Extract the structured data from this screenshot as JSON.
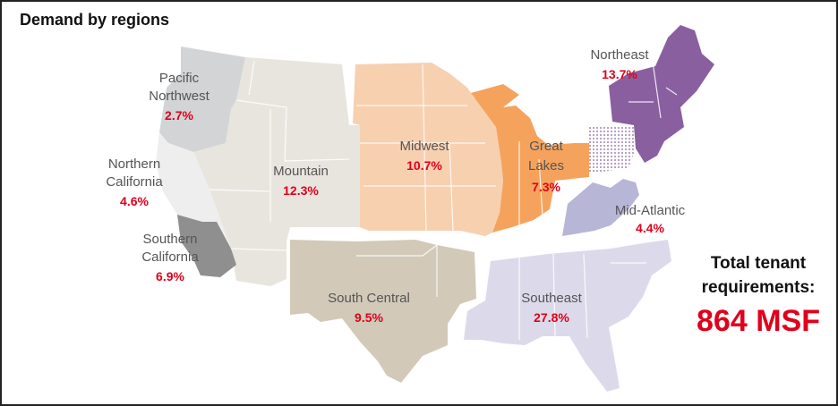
{
  "title": "Demand by regions",
  "regions": {
    "pacific_nw": {
      "name_line1": "Pacific",
      "name_line2": "Northwest",
      "pct": "2.7%",
      "color": "#d3d4d6"
    },
    "n_california": {
      "name_line1": "Northern",
      "name_line2": "California",
      "pct": "4.6%",
      "color": "#eeeeee"
    },
    "s_california": {
      "name_line1": "Southern",
      "name_line2": "California",
      "pct": "6.9%",
      "color": "#8f8f8f"
    },
    "mountain": {
      "name": "Mountain",
      "pct": "12.3%",
      "color": "#e8e5df"
    },
    "midwest": {
      "name": "Midwest",
      "pct": "10.7%",
      "color": "#f7d0b0"
    },
    "great_lakes": {
      "name_line1": "Great",
      "name_line2": "Lakes",
      "pct": "7.3%",
      "color": "#f5a35c"
    },
    "northeast": {
      "name": "Northeast",
      "pct": "13.7%",
      "color": "#8a5fa0"
    },
    "mid_atlantic": {
      "name": "Mid-Atlantic",
      "pct": "4.4%",
      "color": "#b8b6d6"
    },
    "south_central": {
      "name": "South Central",
      "pct": "9.5%",
      "color": "#d2c9b9"
    },
    "southeast": {
      "name": "Southeast",
      "pct": "27.8%",
      "color": "#dcdaea"
    }
  },
  "total": {
    "label_line1": "Total tenant",
    "label_line2": "requirements:",
    "value": "864 MSF"
  }
}
